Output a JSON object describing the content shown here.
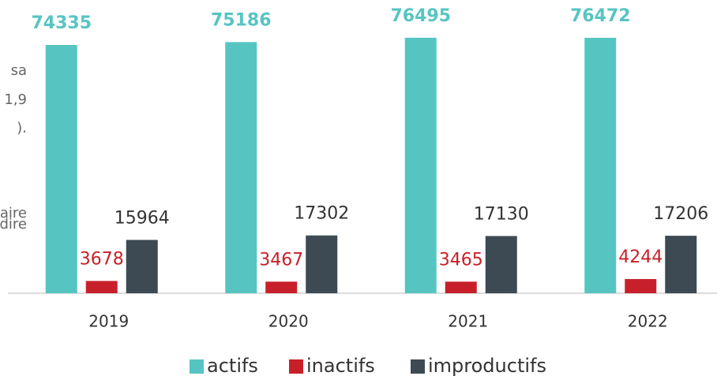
{
  "chart_data": {
    "type": "bar",
    "categories": [
      "2019",
      "2020",
      "2021",
      "2022"
    ],
    "series": [
      {
        "name": "actifs",
        "color": "#56c5c2",
        "values": [
          74335,
          75186,
          76495,
          76472
        ]
      },
      {
        "name": "inactifs",
        "color": "#c8202a",
        "values": [
          3678,
          3467,
          3465,
          4244
        ]
      },
      {
        "name": "improductifs",
        "color": "#3d4a53",
        "values": [
          15964,
          17302,
          17130,
          17206
        ]
      }
    ],
    "ylim": [
      0,
      80000
    ],
    "legend": "bottom",
    "annotations": [
      "sa",
      "1,9",
      ").",
      "aire",
      "dire"
    ]
  }
}
